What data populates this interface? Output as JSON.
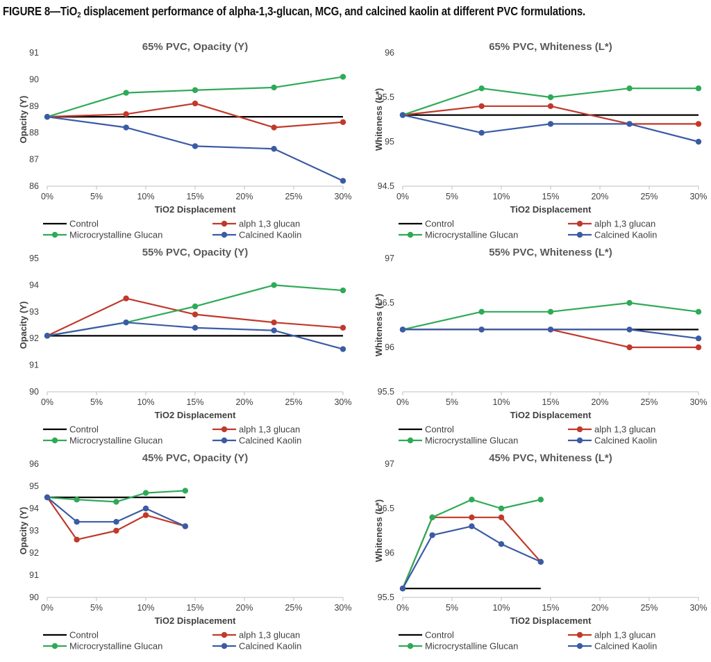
{
  "figure": {
    "title_prefix": "FIGURE 8—TiO",
    "title_sub": "2",
    "title_suffix": " displacement performance of alpha-1,3-glucan, MCG, and calcined kaolin at different PVC formulations."
  },
  "colors": {
    "Control": "#000000",
    "alph 1,3 glucan": "#c0392b",
    "Microcrystalline Glucan": "#2eaa57",
    "Calcined Kaolin": "#3b5ba5"
  },
  "chart_data": [
    {
      "type": "line",
      "title": "65% PVC, Opacity (Y)",
      "xlabel": "TiO2 Displacement",
      "ylabel": "Opacity (Y)",
      "xlim": [
        0,
        30
      ],
      "ylim": [
        86,
        91
      ],
      "xticks": [
        "0%",
        "5%",
        "10%",
        "15%",
        "20%",
        "25%",
        "30%"
      ],
      "yticks": [
        "86",
        "87",
        "88",
        "89",
        "90",
        "91"
      ],
      "legend": [
        "Control",
        "alph 1,3 glucan",
        "Microcrystalline Glucan",
        "Calcined Kaolin"
      ],
      "series": [
        {
          "name": "Control",
          "x": [
            0,
            30
          ],
          "values": [
            88.6,
            88.6
          ],
          "markers": false
        },
        {
          "name": "alph 1,3 glucan",
          "x": [
            0,
            8,
            15,
            23,
            30
          ],
          "values": [
            88.6,
            88.7,
            89.1,
            88.2,
            88.4
          ]
        },
        {
          "name": "Microcrystalline Glucan",
          "x": [
            0,
            8,
            15,
            23,
            30
          ],
          "values": [
            88.6,
            89.5,
            89.6,
            89.7,
            90.1
          ]
        },
        {
          "name": "Calcined Kaolin",
          "x": [
            0,
            8,
            15,
            23,
            30
          ],
          "values": [
            88.6,
            88.2,
            87.5,
            87.4,
            86.2
          ]
        }
      ]
    },
    {
      "type": "line",
      "title": "65% PVC, Whiteness (L*)",
      "xlabel": "TiO2 Displacement",
      "ylabel": "Whiteness (L*)",
      "xlim": [
        0,
        30
      ],
      "ylim": [
        94.5,
        96
      ],
      "xticks": [
        "0%",
        "5%",
        "10%",
        "15%",
        "20%",
        "25%",
        "30%"
      ],
      "yticks": [
        "94.5",
        "95",
        "95.5",
        "96"
      ],
      "legend": [
        "Control",
        "alph 1,3 glucan",
        "Microcrystalline Glucan",
        "Calcined Kaolin"
      ],
      "series": [
        {
          "name": "Control",
          "x": [
            0,
            30
          ],
          "values": [
            95.3,
            95.3
          ],
          "markers": false
        },
        {
          "name": "alph 1,3 glucan",
          "x": [
            0,
            8,
            15,
            23,
            30
          ],
          "values": [
            95.3,
            95.4,
            95.4,
            95.2,
            95.2
          ]
        },
        {
          "name": "Microcrystalline Glucan",
          "x": [
            0,
            8,
            15,
            23,
            30
          ],
          "values": [
            95.3,
            95.6,
            95.5,
            95.6,
            95.6
          ]
        },
        {
          "name": "Calcined Kaolin",
          "x": [
            0,
            8,
            15,
            23,
            30
          ],
          "values": [
            95.3,
            95.1,
            95.2,
            95.2,
            95.0
          ]
        }
      ]
    },
    {
      "type": "line",
      "title": "55% PVC, Opacity (Y)",
      "xlabel": "TiO2 Displacement",
      "ylabel": "Opacity (Y)",
      "xlim": [
        0,
        30
      ],
      "ylim": [
        90,
        95
      ],
      "xticks": [
        "0%",
        "5%",
        "10%",
        "15%",
        "20%",
        "25%",
        "30%"
      ],
      "yticks": [
        "90",
        "91",
        "92",
        "93",
        "94",
        "95"
      ],
      "legend": [
        "Control",
        "alph 1,3 glucan",
        "Microcrystalline Glucan",
        "Calcined Kaolin"
      ],
      "series": [
        {
          "name": "Control",
          "x": [
            0,
            30
          ],
          "values": [
            92.1,
            92.1
          ],
          "markers": false
        },
        {
          "name": "alph 1,3 glucan",
          "x": [
            0,
            8,
            15,
            23,
            30
          ],
          "values": [
            92.1,
            93.5,
            92.9,
            92.6,
            92.4
          ]
        },
        {
          "name": "Microcrystalline Glucan",
          "x": [
            0,
            8,
            15,
            23,
            30
          ],
          "values": [
            92.1,
            92.6,
            93.2,
            94.0,
            93.8
          ]
        },
        {
          "name": "Calcined Kaolin",
          "x": [
            0,
            8,
            15,
            23,
            30
          ],
          "values": [
            92.1,
            92.6,
            92.4,
            92.3,
            91.6
          ]
        }
      ]
    },
    {
      "type": "line",
      "title": "55% PVC, Whiteness (L*)",
      "xlabel": "TiO2 Displacement",
      "ylabel": "Whiteness (L*)",
      "xlim": [
        0,
        30
      ],
      "ylim": [
        95.5,
        97
      ],
      "xticks": [
        "0%",
        "5%",
        "10%",
        "15%",
        "20%",
        "25%",
        "30%"
      ],
      "yticks": [
        "95.5",
        "96",
        "96.5",
        "97"
      ],
      "legend": [
        "Control",
        "alph 1,3 glucan",
        "Microcrystalline Glucan",
        "Calcined Kaolin"
      ],
      "series": [
        {
          "name": "Control",
          "x": [
            0,
            30
          ],
          "values": [
            96.2,
            96.2
          ],
          "markers": false
        },
        {
          "name": "alph 1,3 glucan",
          "x": [
            0,
            8,
            15,
            23,
            30
          ],
          "values": [
            96.2,
            96.2,
            96.2,
            96.0,
            96.0
          ]
        },
        {
          "name": "Microcrystalline Glucan",
          "x": [
            0,
            8,
            15,
            23,
            30
          ],
          "values": [
            96.2,
            96.4,
            96.4,
            96.5,
            96.4
          ]
        },
        {
          "name": "Calcined Kaolin",
          "x": [
            0,
            8,
            15,
            23,
            30
          ],
          "values": [
            96.2,
            96.2,
            96.2,
            96.2,
            96.1
          ]
        }
      ]
    },
    {
      "type": "line",
      "title": "45% PVC, Opacity (Y)",
      "xlabel": "TiO2 Displacement",
      "ylabel": "Opacity (Y)",
      "xlim": [
        0,
        30
      ],
      "ylim": [
        90,
        96
      ],
      "xticks": [
        "0%",
        "5%",
        "10%",
        "15%",
        "20%",
        "25%",
        "30%"
      ],
      "yticks": [
        "90",
        "91",
        "92",
        "93",
        "94",
        "95",
        "96"
      ],
      "legend": [
        "Control",
        "alph 1,3 glucan",
        "Microcrystalline Glucan",
        "Calcined Kaolin"
      ],
      "series": [
        {
          "name": "Control",
          "x": [
            0,
            14
          ],
          "values": [
            94.5,
            94.5
          ],
          "markers": false
        },
        {
          "name": "alph 1,3 glucan",
          "x": [
            0,
            3,
            7,
            10,
            14
          ],
          "values": [
            94.5,
            92.6,
            93.0,
            93.7,
            93.2
          ]
        },
        {
          "name": "Microcrystalline Glucan",
          "x": [
            0,
            3,
            7,
            10,
            14
          ],
          "values": [
            94.5,
            94.4,
            94.3,
            94.7,
            94.8
          ]
        },
        {
          "name": "Calcined Kaolin",
          "x": [
            0,
            3,
            7,
            10,
            14
          ],
          "values": [
            94.5,
            93.4,
            93.4,
            94.0,
            93.2
          ]
        }
      ]
    },
    {
      "type": "line",
      "title": "45% PVC, Whiteness (L*)",
      "xlabel": "TiO2 Displacement",
      "ylabel": "Whiteness (L*)",
      "xlim": [
        0,
        30
      ],
      "ylim": [
        95.5,
        97
      ],
      "xticks": [
        "0%",
        "5%",
        "10%",
        "15%",
        "20%",
        "25%",
        "30%"
      ],
      "yticks": [
        "95.5",
        "96",
        "96.5",
        "97"
      ],
      "legend": [
        "Control",
        "alph 1,3 glucan",
        "Microcrystalline Glucan",
        "Calcined Kaolin"
      ],
      "series": [
        {
          "name": "Control",
          "x": [
            0,
            14
          ],
          "values": [
            95.6,
            95.6
          ],
          "markers": false
        },
        {
          "name": "alph 1,3 glucan",
          "x": [
            0,
            3,
            7,
            10,
            14
          ],
          "values": [
            95.6,
            96.4,
            96.4,
            96.4,
            95.9
          ]
        },
        {
          "name": "Microcrystalline Glucan",
          "x": [
            0,
            3,
            7,
            10,
            14
          ],
          "values": [
            95.6,
            96.4,
            96.6,
            96.5,
            96.6
          ]
        },
        {
          "name": "Calcined Kaolin",
          "x": [
            0,
            3,
            7,
            10,
            14
          ],
          "values": [
            95.6,
            96.2,
            96.3,
            96.1,
            95.9
          ]
        }
      ]
    }
  ]
}
